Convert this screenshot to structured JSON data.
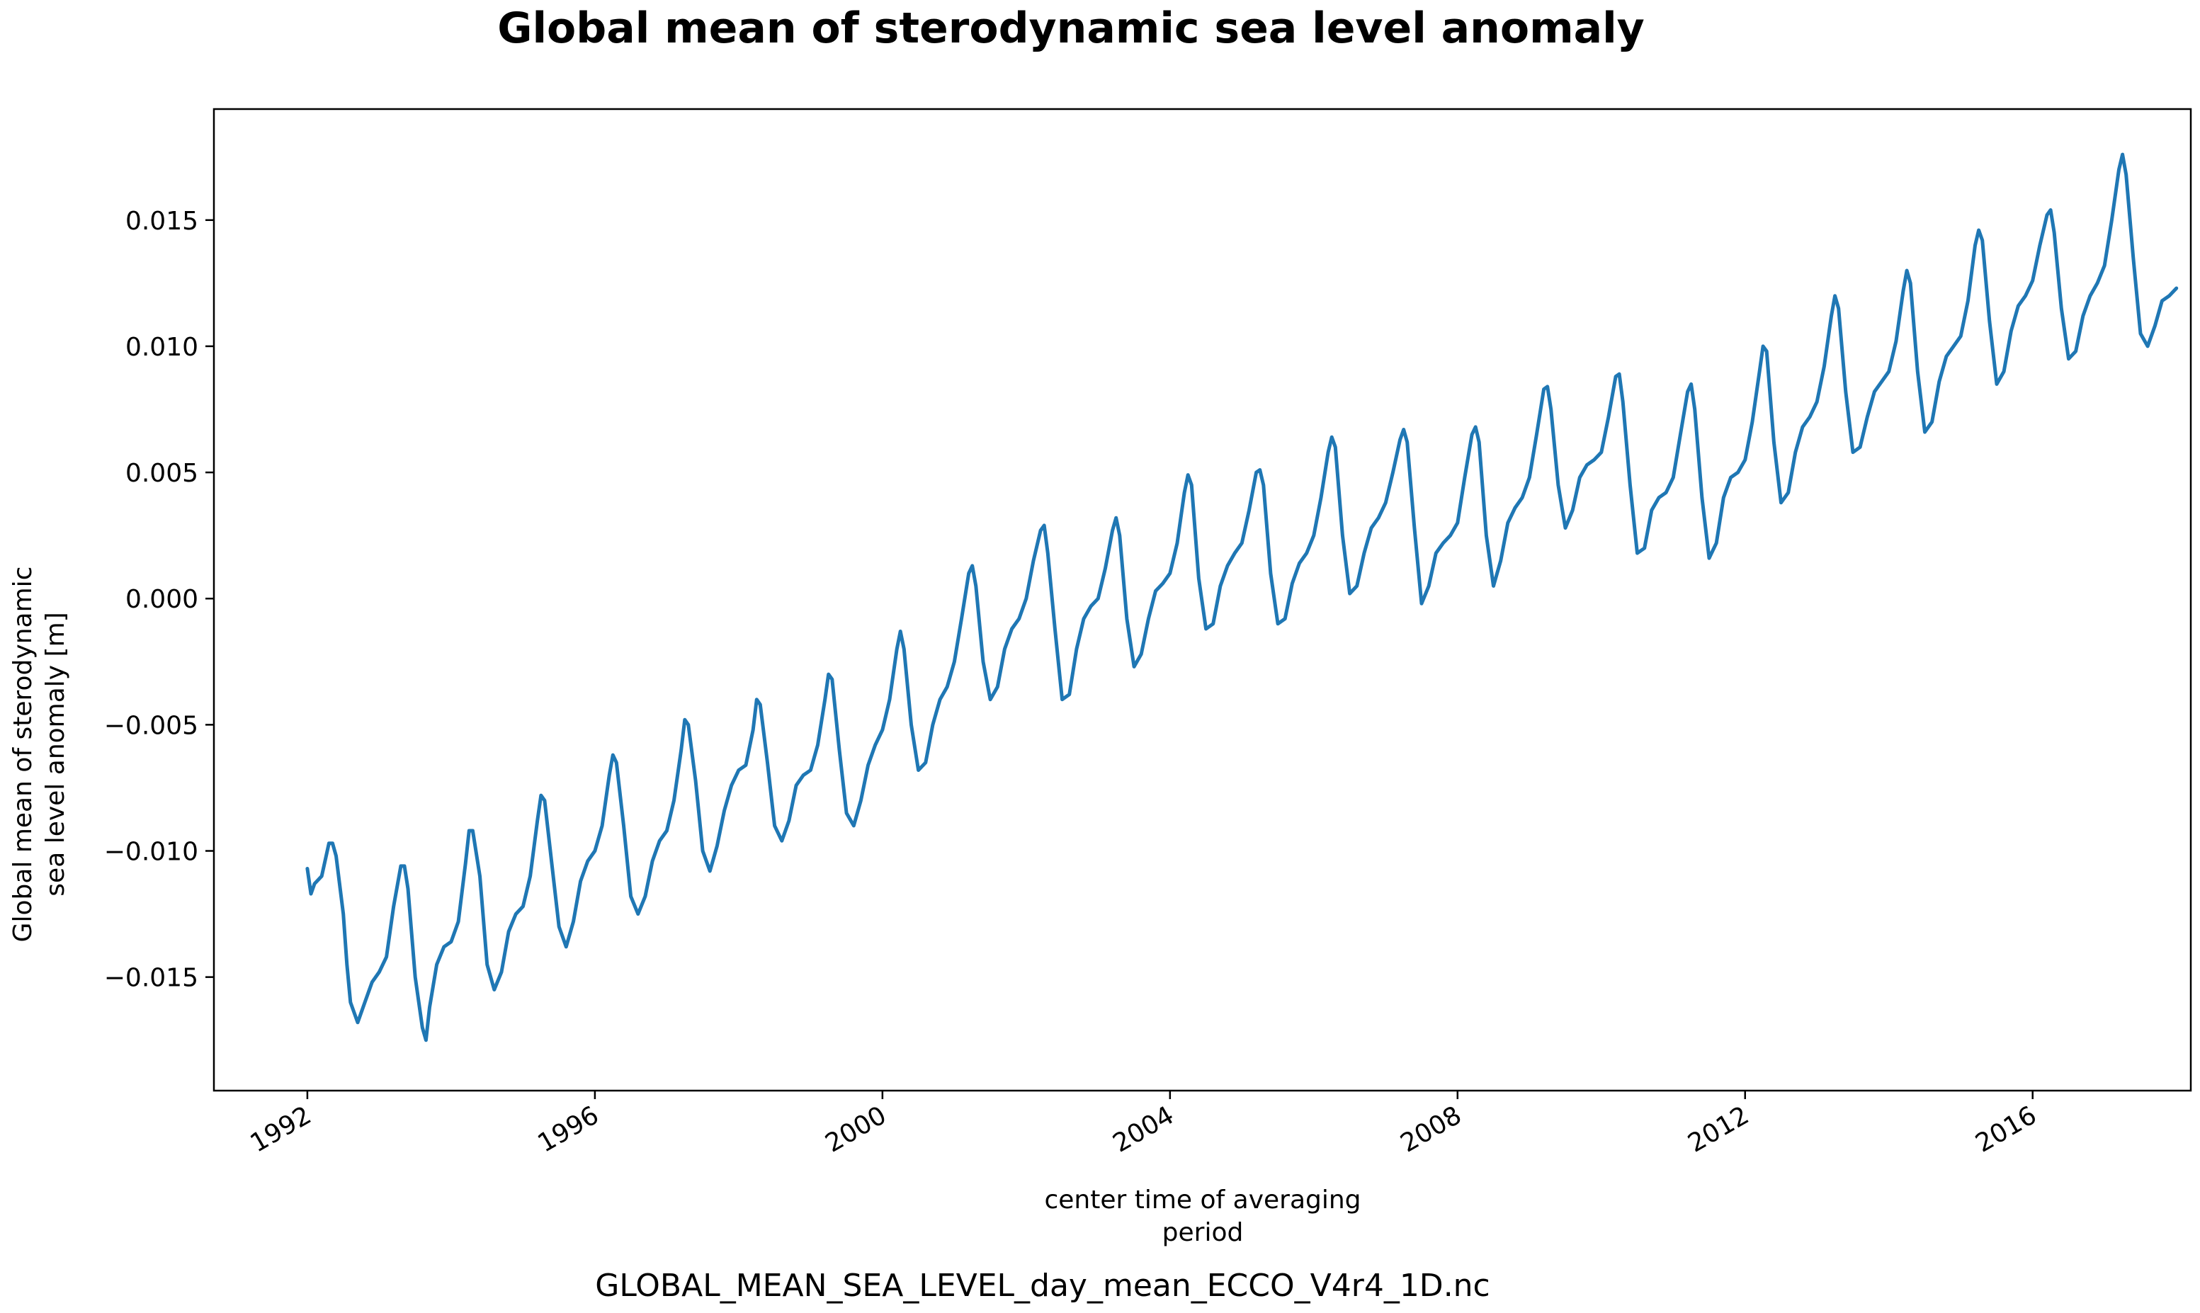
{
  "chart_data": {
    "type": "line",
    "title": "Global mean of sterodynamic sea level anomaly",
    "xlabel": [
      "center time of averaging",
      "period"
    ],
    "ylabel": [
      "Global mean of sterodynamic",
      "sea level anomaly [m]"
    ],
    "caption": "GLOBAL_MEAN_SEA_LEVEL_day_mean_ECCO_V4r4_1D.nc",
    "xlim": [
      1990.7,
      2018.2
    ],
    "ylim": [
      -0.0195,
      0.0194
    ],
    "x_ticks": [
      {
        "value": 1992,
        "label": "1992"
      },
      {
        "value": 1996,
        "label": "1996"
      },
      {
        "value": 2000,
        "label": "2000"
      },
      {
        "value": 2004,
        "label": "2004"
      },
      {
        "value": 2008,
        "label": "2008"
      },
      {
        "value": 2012,
        "label": "2012"
      },
      {
        "value": 2016,
        "label": "2016"
      }
    ],
    "y_ticks": [
      {
        "value": 0.015,
        "label": "0.015"
      },
      {
        "value": 0.01,
        "label": "0.010"
      },
      {
        "value": 0.005,
        "label": "0.005"
      },
      {
        "value": 0.0,
        "label": "0.000"
      },
      {
        "value": -0.005,
        "label": "−0.005"
      },
      {
        "value": -0.01,
        "label": "−0.010"
      },
      {
        "value": -0.015,
        "label": "−0.015"
      }
    ],
    "grid": false,
    "series": [
      {
        "color": "#1f77b4",
        "x": [
          1992.0,
          1992.05,
          1992.1,
          1992.2,
          1992.3,
          1992.35,
          1992.4,
          1992.5,
          1992.55,
          1992.6,
          1992.7,
          1992.8,
          1992.9,
          1993.0,
          1993.1,
          1993.2,
          1993.3,
          1993.35,
          1993.4,
          1993.5,
          1993.6,
          1993.65,
          1993.7,
          1993.8,
          1993.9,
          1994.0,
          1994.1,
          1994.2,
          1994.25,
          1994.3,
          1994.4,
          1994.5,
          1994.6,
          1994.7,
          1994.8,
          1994.9,
          1995.0,
          1995.1,
          1995.2,
          1995.25,
          1995.3,
          1995.4,
          1995.5,
          1995.6,
          1995.7,
          1995.8,
          1995.9,
          1996.0,
          1996.1,
          1996.2,
          1996.25,
          1996.3,
          1996.4,
          1996.5,
          1996.6,
          1996.7,
          1996.8,
          1996.9,
          1997.0,
          1997.1,
          1997.2,
          1997.25,
          1997.3,
          1997.4,
          1997.5,
          1997.6,
          1997.7,
          1997.8,
          1997.9,
          1998.0,
          1998.1,
          1998.2,
          1998.25,
          1998.3,
          1998.4,
          1998.5,
          1998.6,
          1998.7,
          1998.8,
          1998.9,
          1999.0,
          1999.1,
          1999.2,
          1999.25,
          1999.3,
          1999.4,
          1999.5,
          1999.6,
          1999.7,
          1999.8,
          1999.9,
          2000.0,
          2000.1,
          2000.2,
          2000.25,
          2000.3,
          2000.4,
          2000.5,
          2000.6,
          2000.7,
          2000.8,
          2000.9,
          2001.0,
          2001.1,
          2001.2,
          2001.25,
          2001.3,
          2001.4,
          2001.5,
          2001.6,
          2001.7,
          2001.8,
          2001.9,
          2002.0,
          2002.1,
          2002.2,
          2002.25,
          2002.3,
          2002.4,
          2002.5,
          2002.6,
          2002.7,
          2002.8,
          2002.9,
          2003.0,
          2003.1,
          2003.2,
          2003.25,
          2003.3,
          2003.4,
          2003.5,
          2003.6,
          2003.7,
          2003.8,
          2003.9,
          2004.0,
          2004.1,
          2004.2,
          2004.25,
          2004.3,
          2004.4,
          2004.5,
          2004.6,
          2004.7,
          2004.8,
          2004.9,
          2005.0,
          2005.1,
          2005.2,
          2005.25,
          2005.3,
          2005.4,
          2005.5,
          2005.6,
          2005.7,
          2005.8,
          2005.9,
          2006.0,
          2006.1,
          2006.2,
          2006.25,
          2006.3,
          2006.4,
          2006.5,
          2006.6,
          2006.7,
          2006.8,
          2006.9,
          2007.0,
          2007.1,
          2007.2,
          2007.25,
          2007.3,
          2007.4,
          2007.5,
          2007.6,
          2007.7,
          2007.8,
          2007.9,
          2008.0,
          2008.1,
          2008.2,
          2008.25,
          2008.3,
          2008.4,
          2008.5,
          2008.6,
          2008.7,
          2008.8,
          2008.9,
          2009.0,
          2009.1,
          2009.2,
          2009.25,
          2009.3,
          2009.4,
          2009.5,
          2009.6,
          2009.7,
          2009.8,
          2009.9,
          2010.0,
          2010.1,
          2010.2,
          2010.25,
          2010.3,
          2010.4,
          2010.5,
          2010.6,
          2010.7,
          2010.8,
          2010.9,
          2011.0,
          2011.1,
          2011.2,
          2011.25,
          2011.3,
          2011.4,
          2011.5,
          2011.6,
          2011.7,
          2011.8,
          2011.9,
          2012.0,
          2012.1,
          2012.2,
          2012.25,
          2012.3,
          2012.4,
          2012.5,
          2012.6,
          2012.7,
          2012.8,
          2012.9,
          2013.0,
          2013.1,
          2013.2,
          2013.25,
          2013.3,
          2013.4,
          2013.5,
          2013.6,
          2013.7,
          2013.8,
          2013.9,
          2014.0,
          2014.1,
          2014.2,
          2014.25,
          2014.3,
          2014.4,
          2014.5,
          2014.6,
          2014.7,
          2014.8,
          2014.9,
          2015.0,
          2015.1,
          2015.2,
          2015.25,
          2015.3,
          2015.4,
          2015.5,
          2015.6,
          2015.7,
          2015.8,
          2015.9,
          2016.0,
          2016.1,
          2016.2,
          2016.25,
          2016.3,
          2016.4,
          2016.5,
          2016.6,
          2016.7,
          2016.8,
          2016.9,
          2017.0,
          2017.1,
          2017.2,
          2017.25,
          2017.3,
          2017.4,
          2017.5,
          2017.6,
          2017.7,
          2017.8,
          2017.9,
          2018.0
        ],
        "y": [
          -0.0107,
          -0.0117,
          -0.0113,
          -0.011,
          -0.0097,
          -0.0097,
          -0.0102,
          -0.0125,
          -0.0145,
          -0.016,
          -0.0168,
          -0.016,
          -0.0152,
          -0.0148,
          -0.0142,
          -0.0122,
          -0.0106,
          -0.0106,
          -0.0115,
          -0.015,
          -0.017,
          -0.0175,
          -0.0162,
          -0.0145,
          -0.0138,
          -0.0136,
          -0.0128,
          -0.0105,
          -0.0092,
          -0.0092,
          -0.011,
          -0.0145,
          -0.0155,
          -0.0148,
          -0.0132,
          -0.0125,
          -0.0122,
          -0.011,
          -0.0088,
          -0.0078,
          -0.008,
          -0.0105,
          -0.013,
          -0.0138,
          -0.0128,
          -0.0112,
          -0.0104,
          -0.01,
          -0.009,
          -0.007,
          -0.0062,
          -0.0065,
          -0.009,
          -0.0118,
          -0.0125,
          -0.0118,
          -0.0104,
          -0.0096,
          -0.0092,
          -0.008,
          -0.006,
          -0.0048,
          -0.005,
          -0.0072,
          -0.01,
          -0.0108,
          -0.0098,
          -0.0084,
          -0.0074,
          -0.0068,
          -0.0066,
          -0.0052,
          -0.004,
          -0.0042,
          -0.0065,
          -0.009,
          -0.0096,
          -0.0088,
          -0.0074,
          -0.007,
          -0.0068,
          -0.0058,
          -0.004,
          -0.003,
          -0.0032,
          -0.006,
          -0.0085,
          -0.009,
          -0.008,
          -0.0066,
          -0.0058,
          -0.0052,
          -0.004,
          -0.002,
          -0.0013,
          -0.002,
          -0.005,
          -0.0068,
          -0.0065,
          -0.005,
          -0.004,
          -0.0035,
          -0.0025,
          -0.0008,
          0.001,
          0.0013,
          0.0005,
          -0.0025,
          -0.004,
          -0.0035,
          -0.002,
          -0.0012,
          -0.0008,
          0.0,
          0.0015,
          0.0027,
          0.0029,
          0.0018,
          -0.0012,
          -0.004,
          -0.0038,
          -0.002,
          -0.0008,
          -0.0003,
          0.0,
          0.0012,
          0.0027,
          0.0032,
          0.0025,
          -0.0008,
          -0.0027,
          -0.0022,
          -0.0008,
          0.0003,
          0.0006,
          0.001,
          0.0022,
          0.0042,
          0.0049,
          0.0045,
          0.0008,
          -0.0012,
          -0.001,
          0.0005,
          0.0013,
          0.0018,
          0.0022,
          0.0035,
          0.005,
          0.0051,
          0.0045,
          0.001,
          -0.001,
          -0.0008,
          0.0006,
          0.0014,
          0.0018,
          0.0025,
          0.004,
          0.0058,
          0.0064,
          0.006,
          0.0025,
          0.0002,
          0.0005,
          0.0018,
          0.0028,
          0.0032,
          0.0038,
          0.005,
          0.0063,
          0.0067,
          0.0062,
          0.0028,
          -0.0002,
          0.0005,
          0.0018,
          0.0022,
          0.0025,
          0.003,
          0.0048,
          0.0065,
          0.0068,
          0.0062,
          0.0025,
          0.0005,
          0.0015,
          0.003,
          0.0036,
          0.004,
          0.0048,
          0.0065,
          0.0083,
          0.0084,
          0.0075,
          0.0045,
          0.0028,
          0.0035,
          0.0048,
          0.0053,
          0.0055,
          0.0058,
          0.0072,
          0.0088,
          0.0089,
          0.0078,
          0.0045,
          0.0018,
          0.002,
          0.0035,
          0.004,
          0.0042,
          0.0048,
          0.0065,
          0.0082,
          0.0085,
          0.0075,
          0.004,
          0.0016,
          0.0022,
          0.004,
          0.0048,
          0.005,
          0.0055,
          0.007,
          0.009,
          0.01,
          0.0098,
          0.0062,
          0.0038,
          0.0042,
          0.0058,
          0.0068,
          0.0072,
          0.0078,
          0.0092,
          0.0112,
          0.012,
          0.0115,
          0.0082,
          0.0058,
          0.006,
          0.0072,
          0.0082,
          0.0086,
          0.009,
          0.0102,
          0.0122,
          0.013,
          0.0125,
          0.009,
          0.0066,
          0.007,
          0.0086,
          0.0096,
          0.01,
          0.0104,
          0.0118,
          0.014,
          0.0146,
          0.0142,
          0.011,
          0.0085,
          0.009,
          0.0106,
          0.0116,
          0.012,
          0.0126,
          0.014,
          0.0152,
          0.0154,
          0.0145,
          0.0115,
          0.0095,
          0.0098,
          0.0112,
          0.012,
          0.0125,
          0.0132,
          0.015,
          0.017,
          0.0176,
          0.0168,
          0.0135,
          0.0105,
          0.01,
          0.0108,
          0.0118,
          0.012,
          0.0123
        ]
      }
    ]
  }
}
